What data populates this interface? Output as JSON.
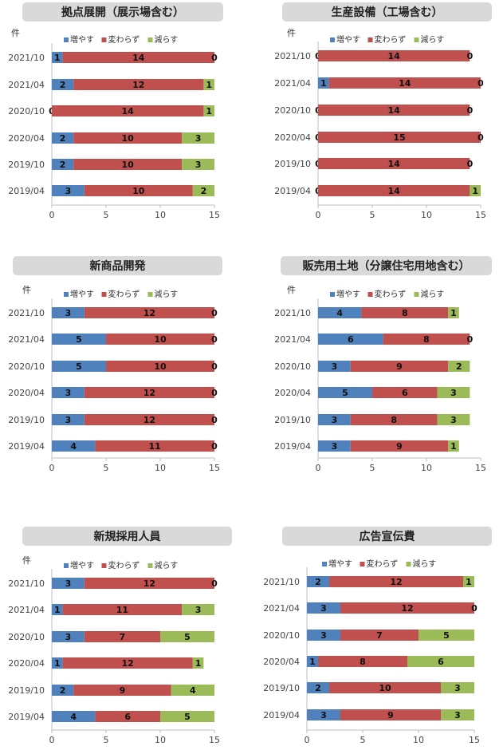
{
  "colors": {
    "increase": "#4f81bd",
    "same": "#c0504d",
    "decrease": "#9bbb59",
    "title_box": "#d9d9d9"
  },
  "chart_data": [
    {
      "type": "bar",
      "title": "拠点展開（展示場含む）",
      "unit": "件",
      "categories": [
        "2021/10",
        "2021/04",
        "2020/10",
        "2020/04",
        "2019/10",
        "2019/04"
      ],
      "series": [
        {
          "name": "増やす",
          "values": [
            1,
            2,
            0,
            2,
            2,
            3
          ]
        },
        {
          "name": "変わらず",
          "values": [
            14,
            12,
            14,
            10,
            10,
            10
          ]
        },
        {
          "name": "減らす",
          "values": [
            0,
            1,
            1,
            3,
            3,
            2
          ]
        }
      ],
      "xlim": [
        0,
        15
      ],
      "xticks": [
        0,
        5,
        10,
        15
      ],
      "stacked": true,
      "legend": "top"
    },
    {
      "type": "bar",
      "title": "生産設備（工場含む）",
      "unit": "件",
      "categories": [
        "2021/10",
        "2021/04",
        "2020/10",
        "2020/04",
        "2019/10",
        "2019/04"
      ],
      "series": [
        {
          "name": "増やす",
          "values": [
            0,
            1,
            0,
            0,
            0,
            0
          ]
        },
        {
          "name": "変わらず",
          "values": [
            14,
            14,
            14,
            15,
            14,
            14
          ]
        },
        {
          "name": "減らす",
          "values": [
            0,
            0,
            0,
            0,
            0,
            1
          ]
        }
      ],
      "xlim": [
        0,
        15
      ],
      "xticks": [
        0,
        5,
        10,
        15
      ],
      "stacked": true,
      "legend": "top"
    },
    {
      "type": "bar",
      "title": "新商品開発",
      "unit": "件",
      "categories": [
        "2021/10",
        "2021/04",
        "2020/10",
        "2020/04",
        "2019/10",
        "2019/04"
      ],
      "series": [
        {
          "name": "増やす",
          "values": [
            3,
            5,
            5,
            3,
            3,
            4
          ]
        },
        {
          "name": "変わらず",
          "values": [
            12,
            10,
            10,
            12,
            12,
            11
          ]
        },
        {
          "name": "減らす",
          "values": [
            0,
            0,
            0,
            0,
            0,
            0
          ]
        }
      ],
      "xlim": [
        0,
        15
      ],
      "xticks": [
        0,
        5,
        10,
        15
      ],
      "stacked": true,
      "legend": "top"
    },
    {
      "type": "bar",
      "title": "販売用土地（分譲住宅用地含む）",
      "unit": "件",
      "categories": [
        "2021/10",
        "2021/04",
        "2020/10",
        "2020/04",
        "2019/10",
        "2019/04"
      ],
      "series": [
        {
          "name": "増やす",
          "values": [
            4,
            6,
            3,
            5,
            3,
            3
          ]
        },
        {
          "name": "変わらず",
          "values": [
            8,
            8,
            9,
            6,
            8,
            9
          ]
        },
        {
          "name": "減らす",
          "values": [
            1,
            0,
            2,
            3,
            3,
            1
          ]
        }
      ],
      "xlim": [
        0,
        15
      ],
      "xticks": [
        0,
        5,
        10,
        15
      ],
      "stacked": true,
      "legend": "top"
    },
    {
      "type": "bar",
      "title": "新規採用人員",
      "unit": "件",
      "categories": [
        "2021/10",
        "2021/04",
        "2020/10",
        "2020/04",
        "2019/10",
        "2019/04"
      ],
      "series": [
        {
          "name": "増やす",
          "values": [
            3,
            1,
            3,
            1,
            2,
            4
          ]
        },
        {
          "name": "変わらず",
          "values": [
            12,
            11,
            7,
            12,
            9,
            6
          ]
        },
        {
          "name": "減らす",
          "values": [
            0,
            3,
            5,
            1,
            4,
            5
          ]
        }
      ],
      "xlim": [
        0,
        15
      ],
      "xticks": [
        0,
        5,
        10,
        15
      ],
      "stacked": true,
      "legend": "top"
    },
    {
      "type": "bar",
      "title": "広告宣伝費",
      "unit": "",
      "categories": [
        "2021/10",
        "2021/04",
        "2020/10",
        "2020/04",
        "2019/10",
        "2019/04"
      ],
      "series": [
        {
          "name": "増やす",
          "values": [
            2,
            3,
            3,
            1,
            2,
            3
          ]
        },
        {
          "name": "変わらず",
          "values": [
            12,
            12,
            7,
            8,
            10,
            9
          ]
        },
        {
          "name": "減らす",
          "values": [
            1,
            0,
            5,
            6,
            3,
            3
          ]
        }
      ],
      "xlim": [
        0,
        15
      ],
      "xticks": [
        0,
        5,
        10,
        15
      ],
      "stacked": true,
      "legend": "top"
    }
  ]
}
